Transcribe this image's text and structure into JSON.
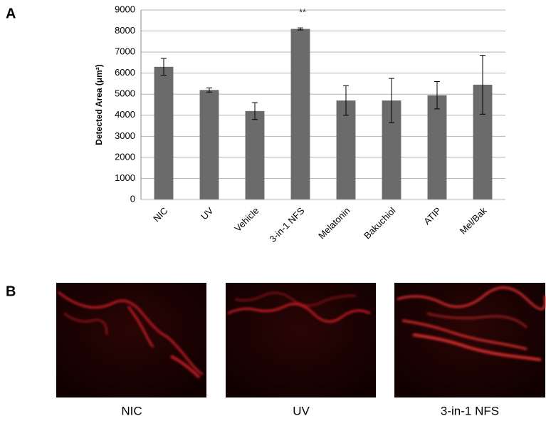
{
  "panel_labels": [
    "A",
    "B"
  ],
  "chart_data": {
    "type": "bar",
    "y_label": "Detected Area (μm²)",
    "annotation": "**",
    "categories": [
      "NIC",
      "UV",
      "Vehicle",
      "3-in-1 NFS",
      "Melatonin",
      "Bakuchiol",
      "ATIP",
      "Mel/Bak"
    ],
    "values": [
      6300,
      5200,
      4200,
      8100,
      4700,
      4700,
      4950,
      5450
    ],
    "errors": [
      400,
      100,
      400,
      50,
      700,
      1050,
      650,
      1400
    ],
    "color": "#6b6b6b",
    "ylim": [
      0,
      9000
    ],
    "yticks": [
      0,
      1000,
      2000,
      3000,
      4000,
      5000,
      6000,
      7000,
      8000,
      9000
    ],
    "grid": true
  },
  "images": [
    {
      "caption": "NIC"
    },
    {
      "caption": "UV"
    },
    {
      "caption": "3-in-1 NFS"
    }
  ]
}
